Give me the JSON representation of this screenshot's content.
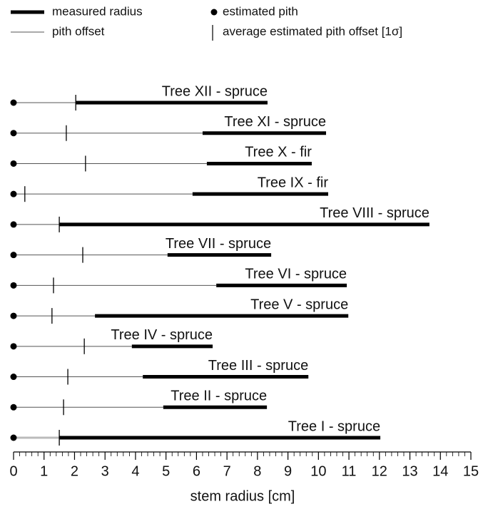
{
  "chart_data": {
    "type": "range",
    "xlabel": "stem radius [cm]",
    "xlim": [
      0,
      15
    ],
    "xticks": [
      0,
      1,
      2,
      3,
      4,
      5,
      6,
      7,
      8,
      9,
      10,
      11,
      12,
      13,
      14,
      15
    ],
    "xminorticks": [
      0.2,
      0.4,
      0.6,
      0.8,
      1.2,
      1.4,
      1.6,
      1.8,
      2.2,
      2.4,
      2.6,
      2.8,
      3.2,
      3.4,
      3.6,
      3.8,
      4.2,
      4.4,
      4.6,
      4.8,
      5.2,
      5.4,
      5.6,
      5.8,
      6.2,
      6.4,
      6.6,
      6.8,
      7.2,
      7.4,
      7.6,
      7.8,
      8.2,
      8.4,
      8.6,
      8.8,
      9.2,
      9.4,
      9.6,
      9.8,
      10.2,
      10.4,
      10.6,
      10.8,
      11.2,
      11.4,
      11.6,
      11.8,
      12.2,
      12.4,
      12.6,
      12.8,
      13.2,
      13.4,
      13.6,
      13.8,
      14.2,
      14.4,
      14.6,
      14.8
    ],
    "legend": [
      "measured radius",
      "estimated pith",
      "pith offset",
      "average estimated pith offset [1σ]"
    ],
    "color": "#000000",
    "series": [
      {
        "name": "Tree XII - spruce",
        "pith": 0,
        "radius": [
          2.04,
          8.33
        ],
        "avg_offset": 2.04,
        "offset_color": "#555555"
      },
      {
        "name": "Tree XI - spruce",
        "pith": 0,
        "radius": [
          6.2,
          10.25
        ],
        "avg_offset": 1.73,
        "offset_color": "#555555"
      },
      {
        "name": "Tree X - fir",
        "pith": 0,
        "radius": [
          6.34,
          9.78
        ],
        "avg_offset": 2.36,
        "offset_color": "#555555"
      },
      {
        "name": "Tree IX - fir",
        "pith": 0,
        "radius": [
          5.87,
          10.32
        ],
        "avg_offset": 0.37,
        "offset_color": "#555555"
      },
      {
        "name": "Tree VIII - spruce",
        "pith": 0,
        "radius": [
          1.5,
          13.64
        ],
        "avg_offset": 1.5,
        "offset_color": "#555555"
      },
      {
        "name": "Tree VII - spruce",
        "pith": 0,
        "radius": [
          5.05,
          8.45
        ],
        "avg_offset": 2.27,
        "offset_color": "#555555"
      },
      {
        "name": "Tree VI - spruce",
        "pith": 0,
        "radius": [
          6.65,
          10.93
        ],
        "avg_offset": 1.31,
        "offset_color": "#555555"
      },
      {
        "name": "Tree V - spruce",
        "pith": 0,
        "radius": [
          2.67,
          10.98
        ],
        "avg_offset": 1.26,
        "offset_color": "#555555"
      },
      {
        "name": "Tree IV - spruce",
        "pith": 0,
        "radius": [
          3.88,
          6.53
        ],
        "avg_offset": 2.32,
        "offset_color": "#555555"
      },
      {
        "name": "Tree III - spruce",
        "pith": 0,
        "radius": [
          4.24,
          9.67
        ],
        "avg_offset": 1.78,
        "offset_color": "#555555"
      },
      {
        "name": "Tree II - spruce",
        "pith": 0,
        "radius": [
          4.91,
          8.31
        ],
        "avg_offset": 1.64,
        "offset_color": "#555555"
      },
      {
        "name": "Tree I - spruce",
        "pith": 0,
        "radius": [
          1.5,
          12.03
        ],
        "avg_offset": 1.5,
        "offset_color": "#bbbbbb"
      }
    ]
  }
}
